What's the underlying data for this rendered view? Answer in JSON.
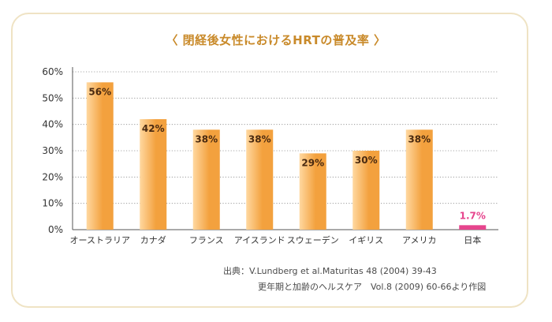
{
  "title": "〈 閉経後女性におけるHRTの普及率 〉",
  "colors": {
    "bar_top": "#ffd8a0",
    "bar_bottom": "#f3a13e",
    "highlight": "#e6458d",
    "frame": "#efe3c4",
    "title": "#c98a2a",
    "text": "#333333",
    "grid": "#8a8a8a"
  },
  "chart_data": {
    "type": "bar",
    "title": "〈 閉経後女性におけるHRTの普及率 〉",
    "xlabel": "",
    "ylabel": "",
    "categories": [
      "オーストラリア",
      "カナダ",
      "フランス",
      "アイスランド",
      "スウェーデン",
      "イギリス",
      "アメリカ",
      "日本"
    ],
    "values": [
      56,
      42,
      38,
      38,
      29,
      30,
      38,
      1.7
    ],
    "value_labels": [
      "56%",
      "42%",
      "38%",
      "38%",
      "29%",
      "30%",
      "38%",
      "1.7%"
    ],
    "highlight_category": "日本",
    "ylim": [
      0,
      60
    ],
    "yticks": [
      0,
      10,
      20,
      30,
      40,
      50,
      60
    ],
    "ytick_labels": [
      "0%",
      "10%",
      "20%",
      "30%",
      "40%",
      "50%",
      "60%"
    ],
    "grid": "horizontal dotted",
    "legend": "none"
  },
  "source": {
    "line1": "出典：V.Lundberg et al.Maturitas 48 (2004) 39-43",
    "line2": "更年期と加齢のヘルスケア　Vol.8 (2009) 60-66より作図"
  }
}
